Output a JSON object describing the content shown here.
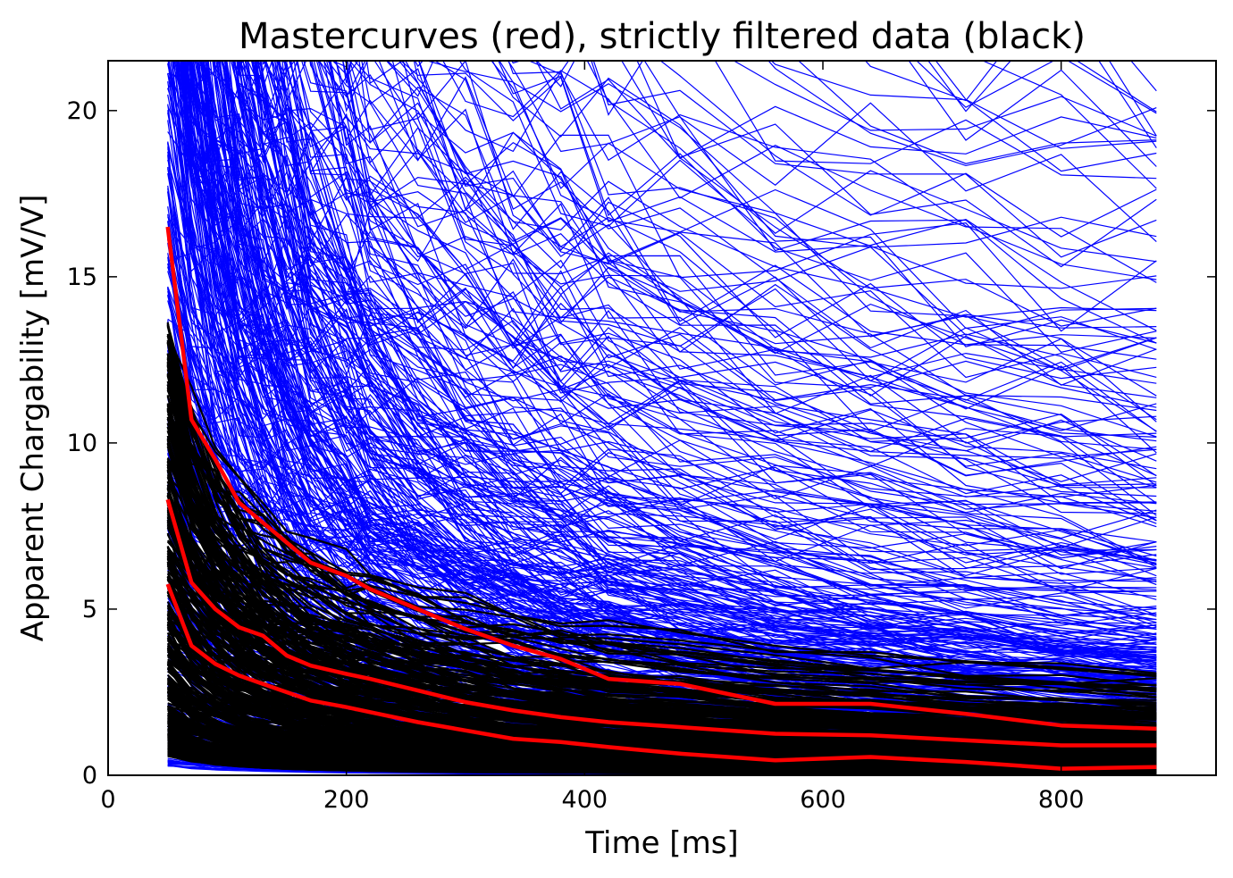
{
  "chart_data": {
    "type": "line",
    "title": "Mastercurves (red), strictly filtered data (black)",
    "xlabel": "Time [ms]",
    "ylabel": "Apparent Chargability [mV/V]",
    "xlim": [
      0,
      930
    ],
    "ylim": [
      0,
      21.5
    ],
    "xticks": [
      0,
      200,
      400,
      600,
      800
    ],
    "yticks": [
      0,
      5,
      10,
      15,
      20
    ],
    "grid": false,
    "legend": "none",
    "colors": {
      "raw": "#0000ff",
      "filtered": "#000000",
      "master": "#ff0000"
    },
    "x": [
      50,
      70,
      90,
      110,
      130,
      150,
      170,
      200,
      220,
      260,
      300,
      340,
      380,
      420,
      480,
      560,
      640,
      720,
      800,
      880
    ],
    "series": [
      {
        "group": "master",
        "values": [
          16.5,
          10.7,
          9.5,
          8.2,
          7.6,
          7.0,
          6.4,
          6.0,
          5.6,
          5.0,
          4.4,
          3.9,
          3.5,
          2.9,
          2.75,
          2.15,
          2.15,
          1.85,
          1.5,
          1.4
        ]
      },
      {
        "group": "master",
        "values": [
          8.3,
          5.8,
          5.0,
          4.45,
          4.2,
          3.6,
          3.3,
          3.05,
          2.9,
          2.55,
          2.2,
          1.95,
          1.75,
          1.6,
          1.45,
          1.25,
          1.2,
          1.05,
          0.9,
          0.9
        ]
      },
      {
        "group": "master",
        "values": [
          5.75,
          3.9,
          3.35,
          3.0,
          2.75,
          2.5,
          2.25,
          2.05,
          1.9,
          1.6,
          1.35,
          1.1,
          1.0,
          0.85,
          0.65,
          0.45,
          0.55,
          0.4,
          0.2,
          0.25
        ]
      }
    ],
    "annotations": []
  }
}
